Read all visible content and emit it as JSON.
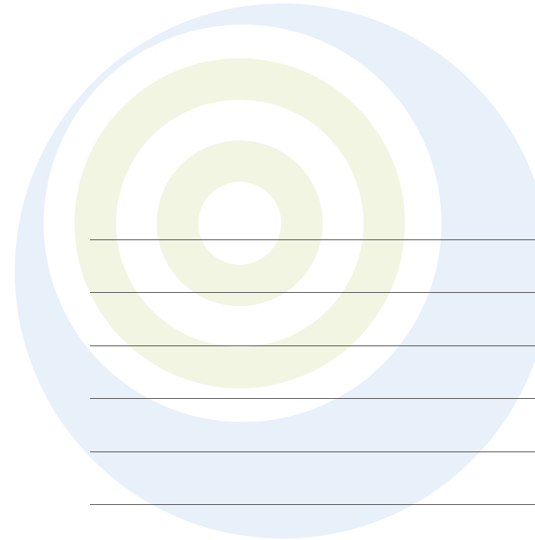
{
  "colors": {
    "background": "#ffffff",
    "outer_disc": "#e8f0fa",
    "ring_fill": "#f1f5e2",
    "ring_gap": "#ffffff",
    "line": "#3a3a3a"
  },
  "ruled_lines": {
    "count": 6
  }
}
